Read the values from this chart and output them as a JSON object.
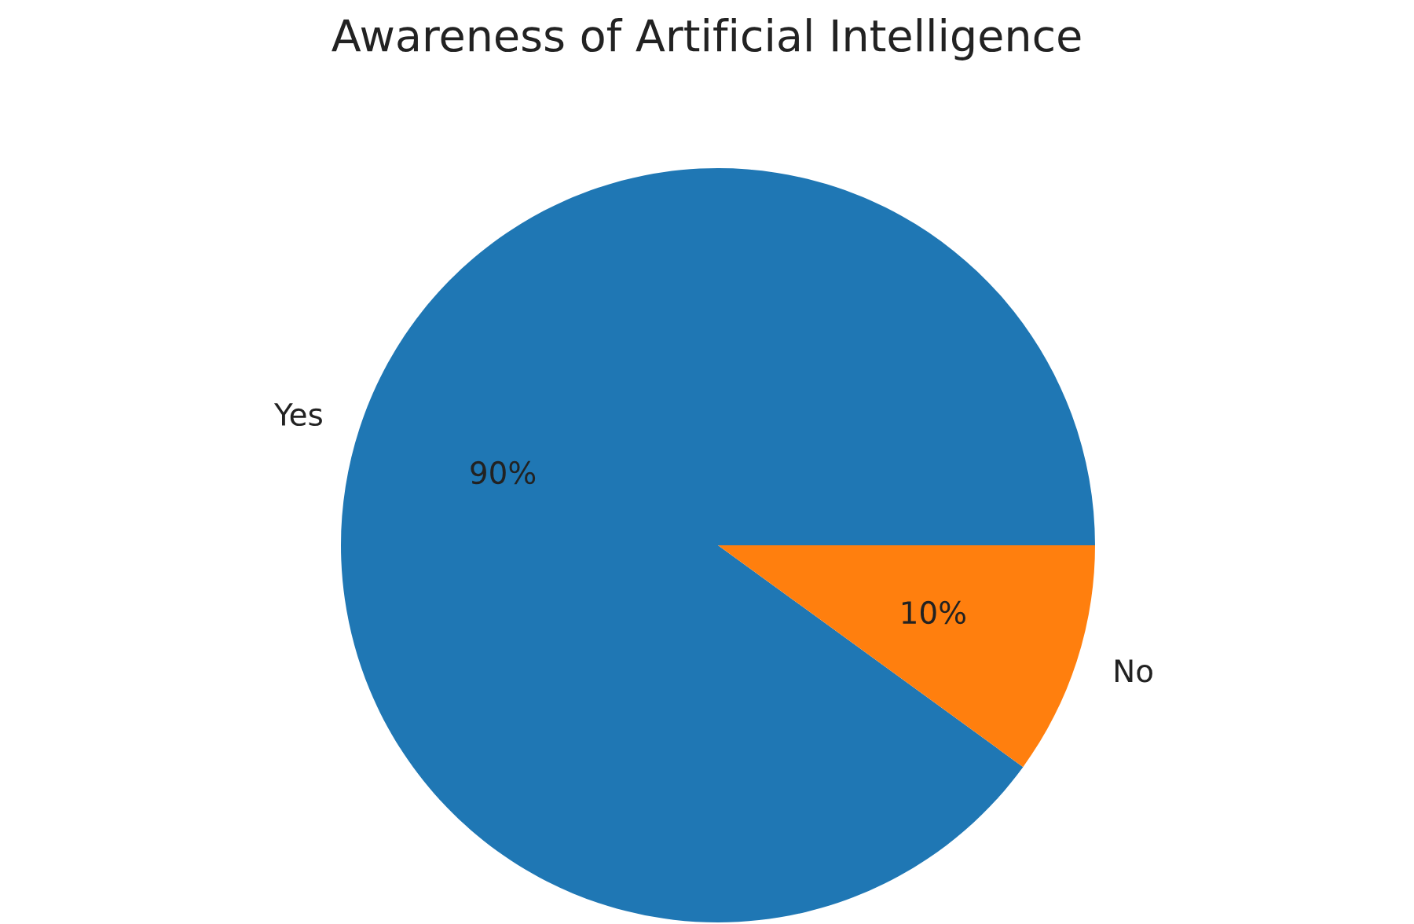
{
  "chart_data": {
    "type": "pie",
    "title": "Awareness of Artificial Intelligence",
    "categories": [
      "Yes",
      "No"
    ],
    "values": [
      90,
      10
    ],
    "colors": [
      "#1f77b4",
      "#ff7f0e"
    ],
    "value_labels": [
      "90%",
      "10%"
    ]
  }
}
